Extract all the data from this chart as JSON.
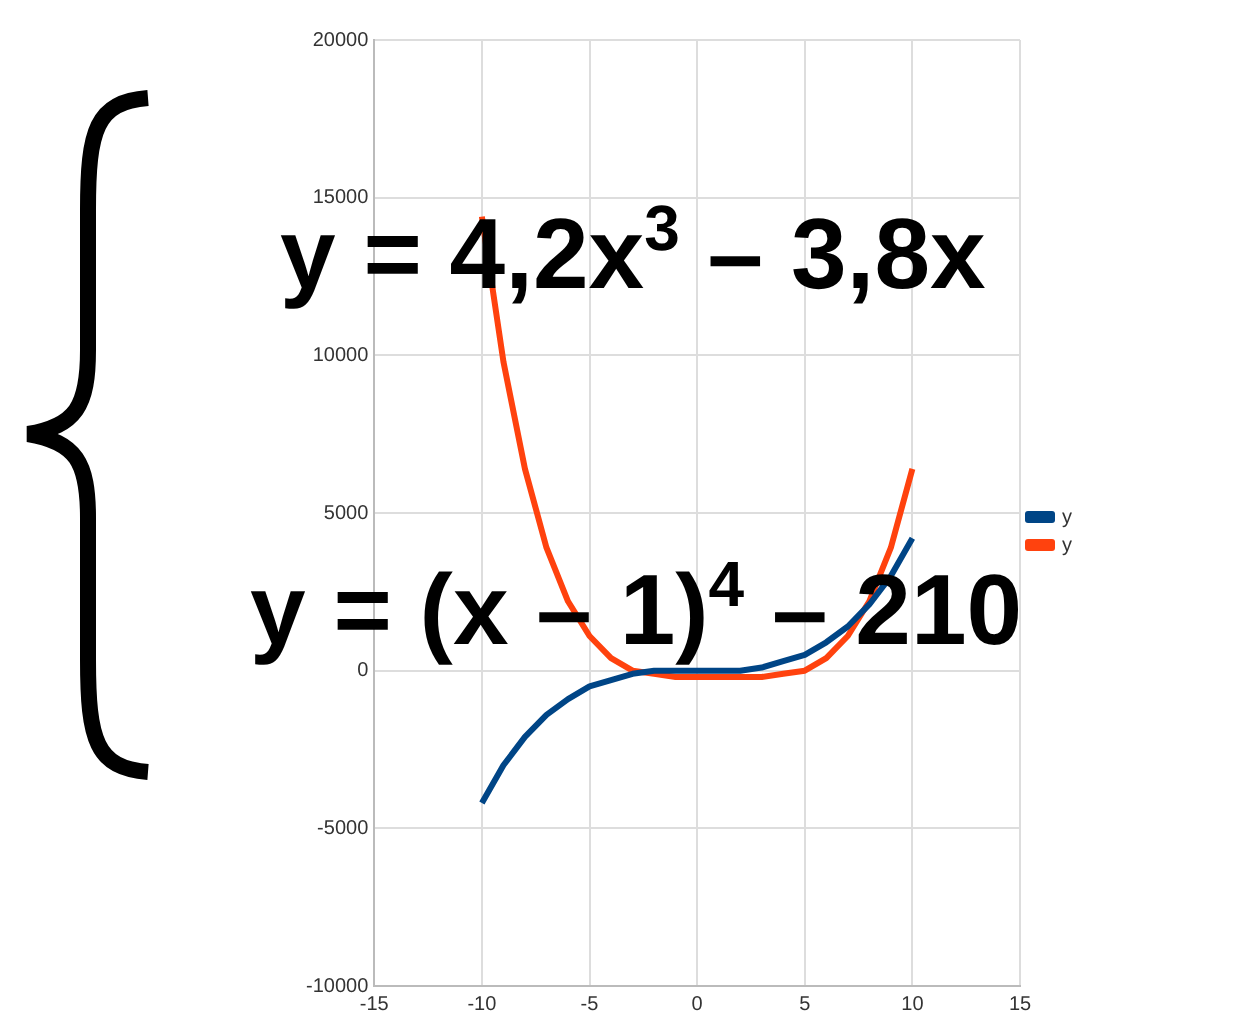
{
  "chart_data": {
    "type": "line",
    "annotations": [
      "y = 4,2x$^{3}$ – 3,8x",
      "y = (x – 1)$^{4}$ – 210"
    ],
    "x": [
      -10,
      -9,
      -8,
      -7,
      -6,
      -5,
      -4,
      -3,
      -2,
      -1,
      0,
      1,
      2,
      3,
      4,
      5,
      6,
      7,
      8,
      9,
      10
    ],
    "series": [
      {
        "name": "y",
        "color": "#004586",
        "values": [
          -4200,
          -3000,
          -2100,
          -1400,
          -900,
          -500,
          -300,
          -100,
          0,
          0,
          0,
          0,
          0,
          100,
          300,
          500,
          900,
          1400,
          2100,
          3000,
          4200
        ]
      },
      {
        "name": "y",
        "color": "#ff420e",
        "values": [
          14400,
          9800,
          6400,
          3900,
          2200,
          1100,
          400,
          0,
          -100,
          -200,
          -200,
          -200,
          -200,
          -200,
          -100,
          0,
          400,
          1100,
          2200,
          3900,
          6400
        ]
      }
    ],
    "xlim": [
      -15,
      15
    ],
    "xticks": [
      -15,
      -10,
      -5,
      0,
      5,
      10,
      15
    ],
    "ylim": [
      -10000,
      20000
    ],
    "yticks": [
      -10000,
      -5000,
      0,
      5000,
      10000,
      15000,
      20000
    ],
    "grid": true,
    "legend": "right",
    "marker": "none",
    "line_style": "solid"
  }
}
